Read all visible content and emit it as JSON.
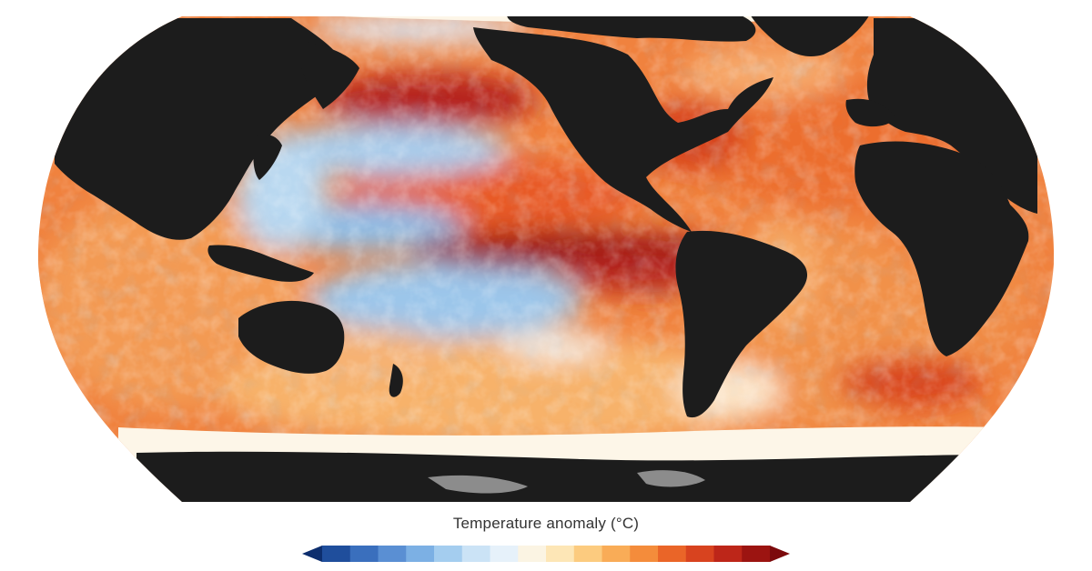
{
  "map": {
    "projection": "robinson-like world projection",
    "variable": "sea surface temperature anomaly",
    "colors": {
      "land": "#1c1c1c",
      "sea_ice": "#fdf8ec",
      "ice_shelf_gray": "#8c8c8c",
      "background": "#ffffff"
    },
    "icon": "world-map"
  },
  "legend": {
    "title": "Temperature anomaly (°C)",
    "colorscale": [
      "#0d2e6e",
      "#1f4e9c",
      "#3a6fbd",
      "#5a8fd3",
      "#7cb0e4",
      "#a4cdef",
      "#cbe3f6",
      "#e6f1fa",
      "#fbf4e3",
      "#fde6b6",
      "#fccb7f",
      "#f9ac57",
      "#f48c3b",
      "#ea6528",
      "#d8431f",
      "#bd2619",
      "#9c1411",
      "#7c0a0c"
    ]
  }
}
